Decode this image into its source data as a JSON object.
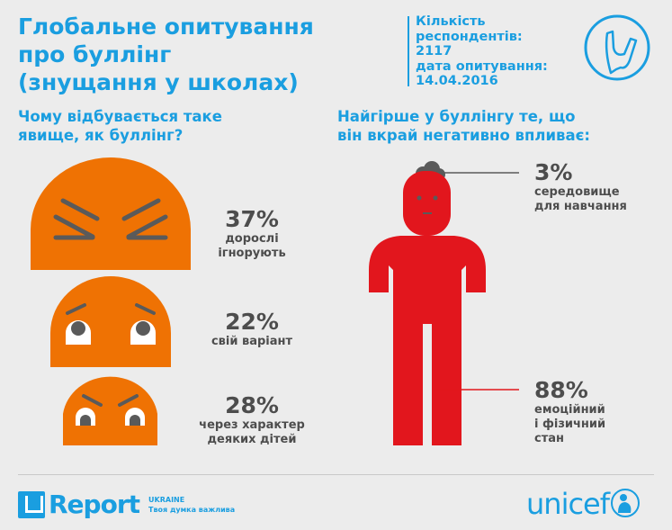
{
  "header": {
    "title_lines": [
      "Глобальне опитування",
      "про буллінг",
      "(знущання у школах)"
    ],
    "respondents_label_lines": [
      "Кількість",
      "респондентів:"
    ],
    "respondents": "2117",
    "date_label": "дата опитування:",
    "date": "14.04.2016",
    "icon": "slingshot-icon"
  },
  "left": {
    "heading_lines": [
      "Чому відбувається таке",
      "явище, як буллінг?"
    ],
    "items": [
      {
        "percent": "37%",
        "label_lines": [
          "дорослі",
          "ігнорують"
        ],
        "value": 37
      },
      {
        "percent": "22%",
        "label_lines": [
          "свій варіант"
        ],
        "value": 22
      },
      {
        "percent": "28%",
        "label_lines": [
          "через характер",
          "деяких дітей"
        ],
        "value": 28
      }
    ]
  },
  "right": {
    "heading_lines": [
      "Найгірше у буллінгу те, що",
      "він вкрай негативно впливає:"
    ],
    "items": [
      {
        "percent": "3%",
        "label_lines": [
          "середовище",
          "для навчання"
        ],
        "value": 3
      },
      {
        "percent": "88%",
        "label_lines": [
          "емоційний",
          "і фізичний",
          "стан"
        ],
        "value": 88
      }
    ]
  },
  "footer": {
    "ureport": "Report",
    "ureport_country": "UKRAINE",
    "ureport_tagline": "Твоя думка важлива",
    "unicef": "unicef"
  },
  "colors": {
    "blue": "#1a9ee0",
    "orange": "#ef7203",
    "red": "#e2161d",
    "gray": "#4d4d4d"
  }
}
